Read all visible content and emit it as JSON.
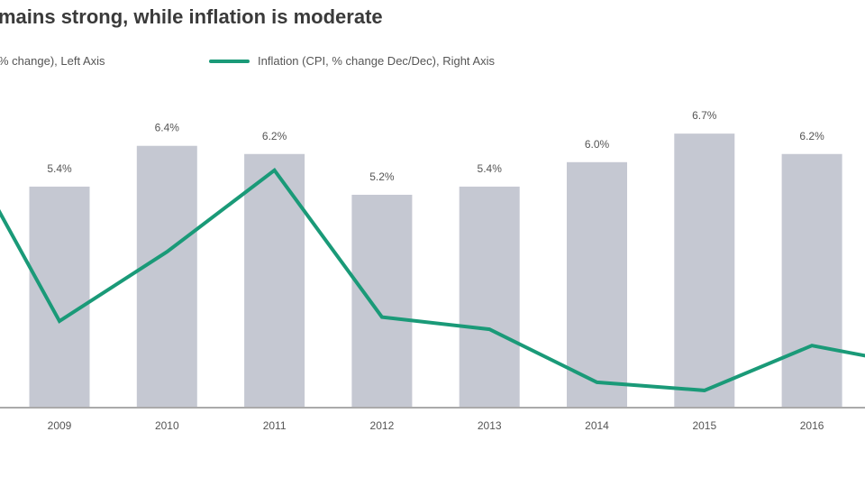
{
  "title": "mains strong, while inflation is moderate",
  "legend": {
    "bar_label": "% change), Left Axis",
    "line_label": "Inflation (CPI, % change Dec/Dec), Right Axis"
  },
  "colors": {
    "bar": "#c5c8d2",
    "line": "#1a9a78",
    "axis": "#aaaaaa"
  },
  "chart_data": {
    "type": "bar+line",
    "title": "mains strong, while inflation is moderate",
    "categories": [
      "2009",
      "2010",
      "2011",
      "2012",
      "2013",
      "2014",
      "2015",
      "2016"
    ],
    "series": [
      {
        "name": "% change), Left Axis",
        "type": "bar",
        "axis": "left",
        "values": [
          5.4,
          6.4,
          6.2,
          5.2,
          5.4,
          6.0,
          6.7,
          6.2
        ],
        "data_labels": [
          "5.4%",
          "6.4%",
          "6.2%",
          "5.2%",
          "5.4%",
          "6.0%",
          "6.7%",
          "6.2%"
        ]
      },
      {
        "name": "Inflation (CPI, % change Dec/Dec), Right Axis",
        "type": "line",
        "axis": "right",
        "x": [
          "2008",
          "2009",
          "2010",
          "2011",
          "2012",
          "2013",
          "2014",
          "2015",
          "2016",
          "2017"
        ],
        "values": [
          6.9,
          2.1,
          3.8,
          5.8,
          2.2,
          1.9,
          0.6,
          0.4,
          1.5,
          1.0
        ]
      }
    ],
    "ylim": [
      0,
      7
    ],
    "grid": false,
    "legend_position": "top"
  }
}
